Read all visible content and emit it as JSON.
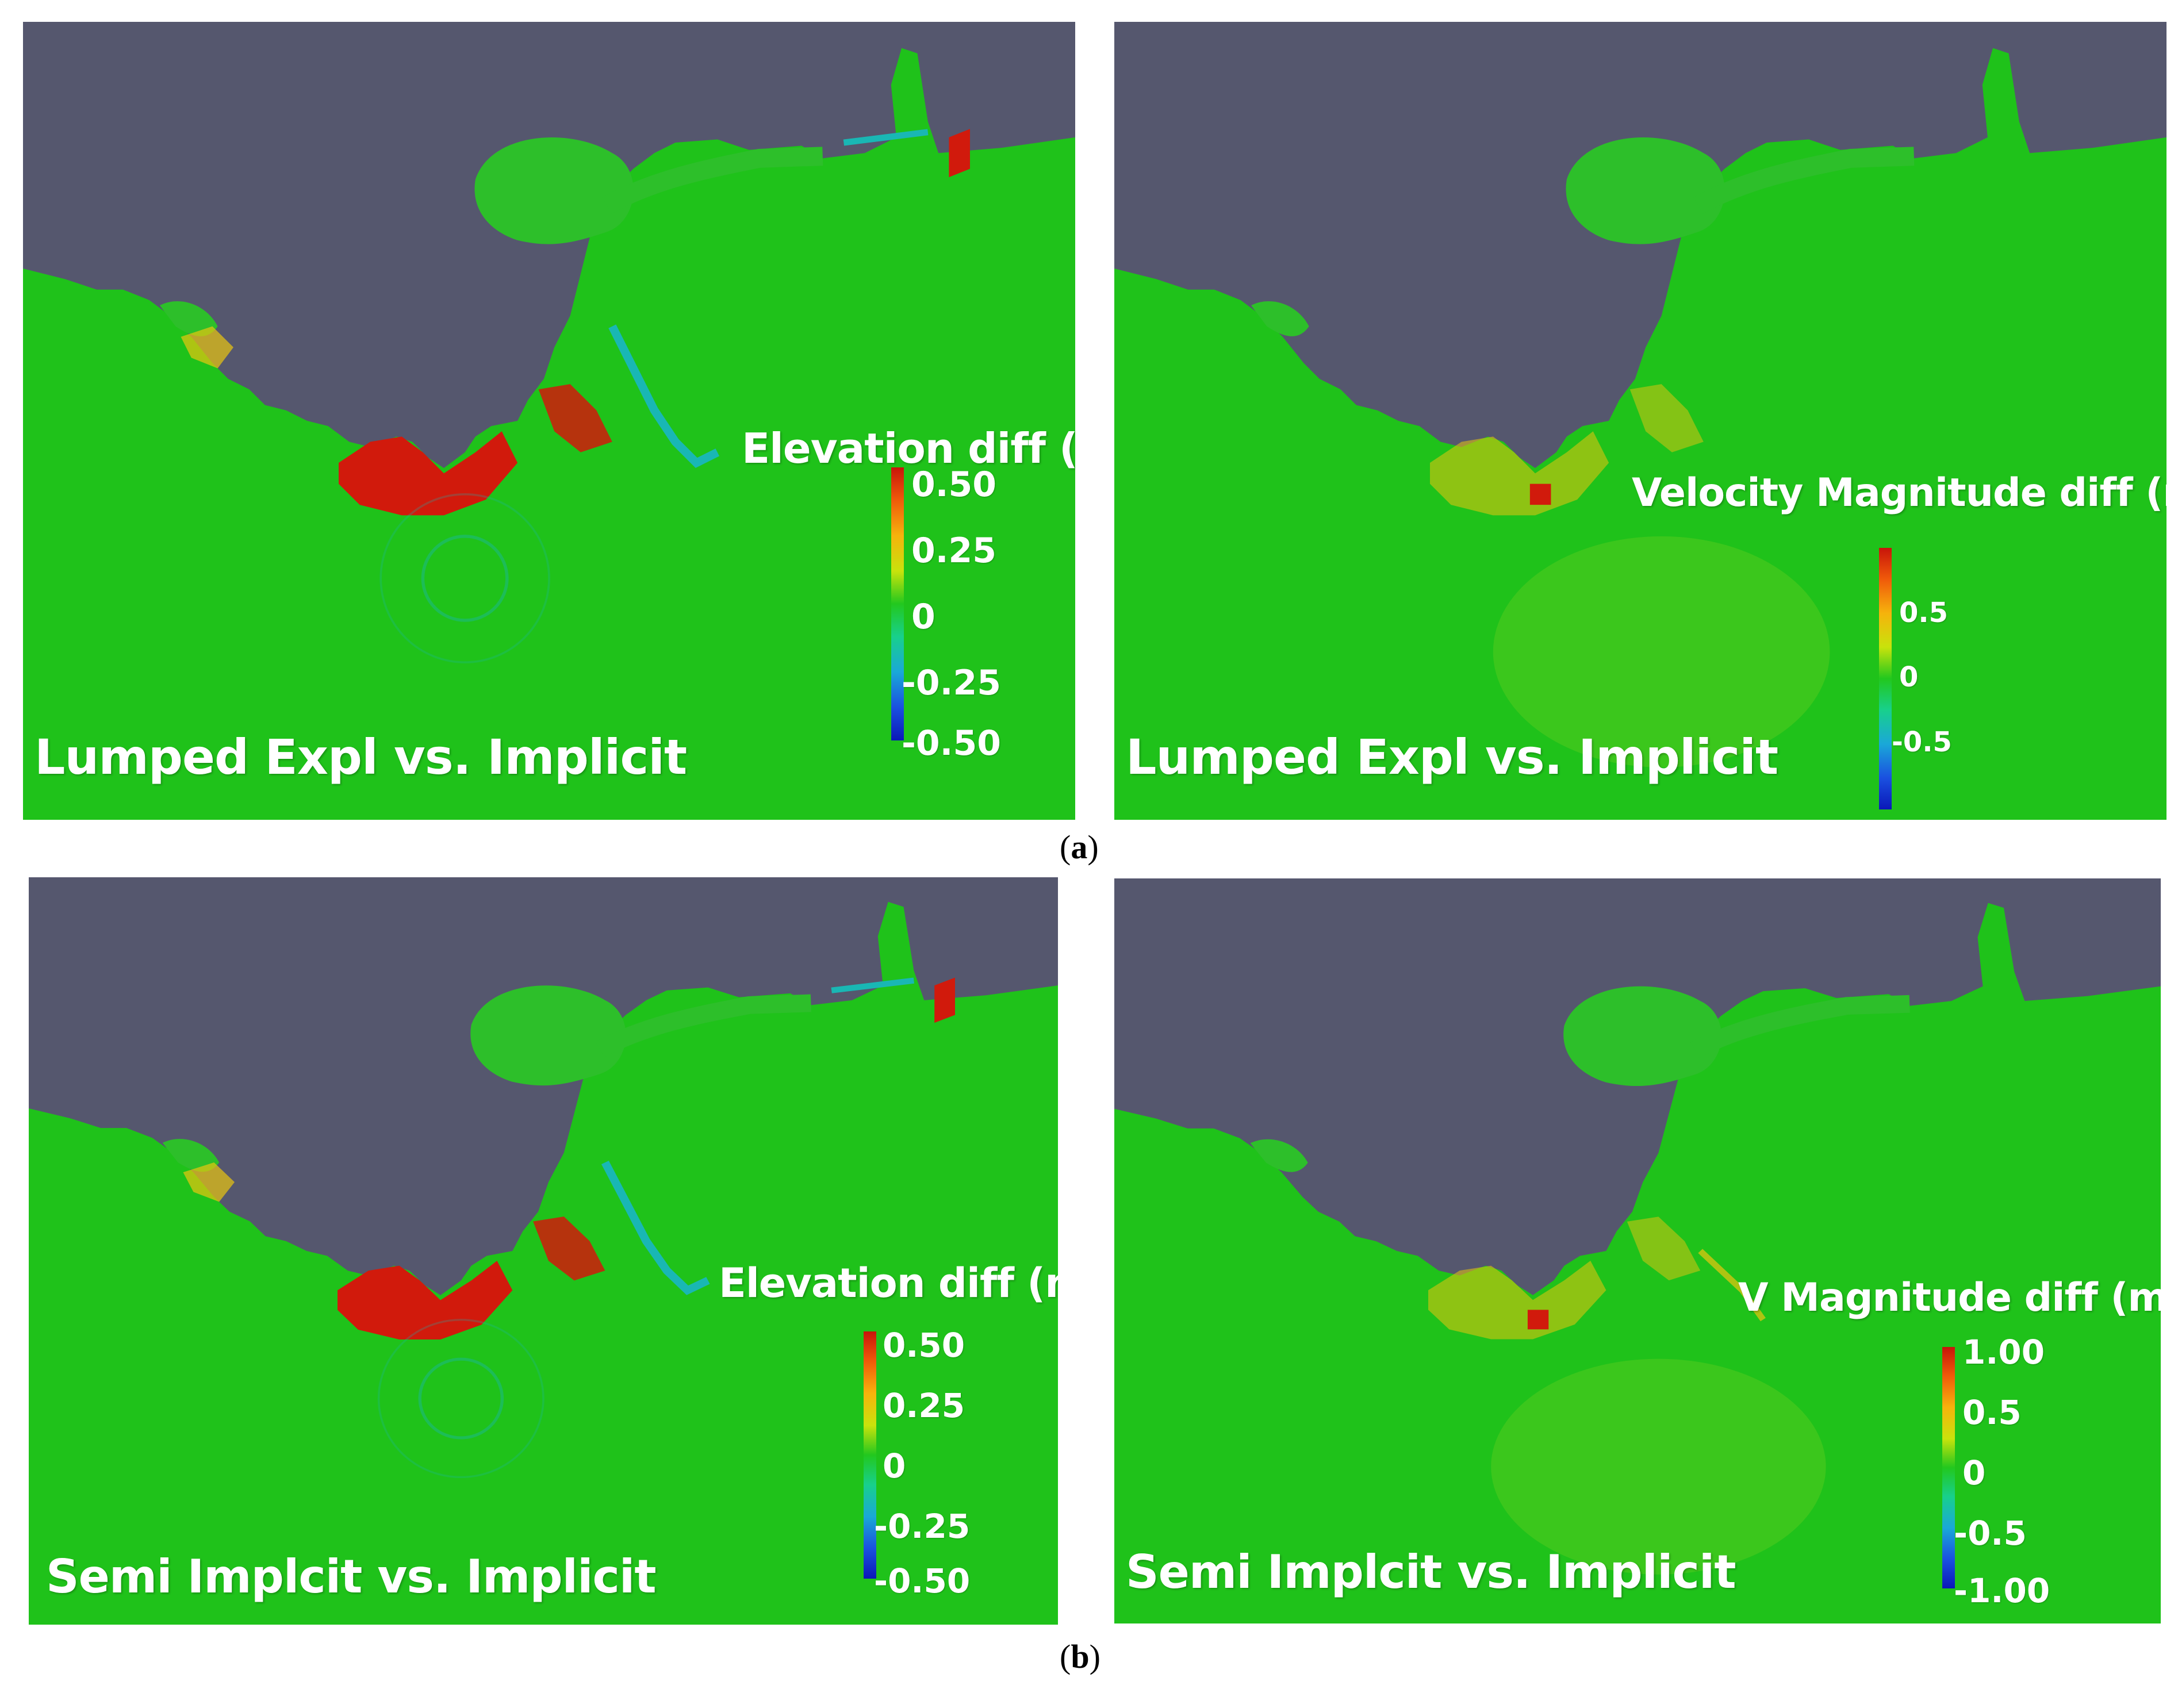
{
  "colors": {
    "land": "#55576e",
    "water": "#1fc21a",
    "hot": "#d11a0c",
    "warm": "#e9c40f",
    "cool": "#19b7b4"
  },
  "panels": [
    {
      "id": "a-left",
      "caption": "Lumped Expl vs. Implicit",
      "legend_title": "Elevation diff (m)",
      "ticks": [
        "0.50",
        "0.25",
        "0",
        "-0.25",
        "-0.50"
      ]
    },
    {
      "id": "a-right",
      "caption": "Lumped Expl vs. Implicit",
      "legend_title": "Velocity Magnitude diff (m/s)",
      "ticks": [
        "0.5",
        "0",
        "-0.5"
      ]
    },
    {
      "id": "b-left",
      "caption": "Semi Implcit vs. Implicit",
      "legend_title": "Elevation diff (m)",
      "ticks": [
        "0.50",
        "0.25",
        "0",
        "-0.25",
        "-0.50"
      ]
    },
    {
      "id": "b-right",
      "caption": "Semi Implcit vs. Implicit",
      "legend_title": "V Magnitude diff (m/s)",
      "ticks": [
        "1.00",
        "0.5",
        "0",
        "-0.5",
        "-1.00"
      ]
    }
  ],
  "subcaptions": {
    "a": {
      "open": "(",
      "letter": "a",
      "close": ")"
    },
    "b": {
      "open": "(",
      "letter": "b",
      "close": ")"
    }
  }
}
